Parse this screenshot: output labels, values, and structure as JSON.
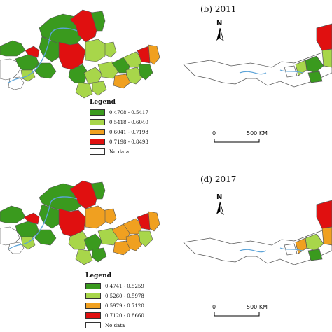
{
  "panels": [
    {
      "title": "(b) 2011",
      "legend": {
        "title": "Legend",
        "classes": [
          {
            "range": "0.4708 - 0.5417",
            "color": "#3a9a1e"
          },
          {
            "range": "0.5418 - 0.6040",
            "color": "#a8d64a"
          },
          {
            "range": "0.6041 - 0.7198",
            "color": "#f0a020"
          },
          {
            "range": "0.7198 - 0.8493",
            "color": "#e01010"
          },
          {
            "range": "No data",
            "color": "#ffffff"
          }
        ]
      },
      "scale_bar": {
        "zero": "0",
        "distance": "500 KM"
      },
      "north_label": "N"
    },
    {
      "title": "(d) 2017",
      "legend": {
        "title": "Legend",
        "classes": [
          {
            "range": "0.4741 - 0.5259",
            "color": "#3a9a1e"
          },
          {
            "range": "0.5260 - 0.5978",
            "color": "#a8d64a"
          },
          {
            "range": "0.5979 - 0.7120",
            "color": "#f0a020"
          },
          {
            "range": "0.7120 - 0.8660",
            "color": "#e01010"
          },
          {
            "range": "No data",
            "color": "#ffffff"
          }
        ]
      },
      "scale_bar": {
        "zero": "0",
        "distance": "500 KM"
      },
      "north_label": "N"
    }
  ],
  "river_color": "#5ba3d8"
}
